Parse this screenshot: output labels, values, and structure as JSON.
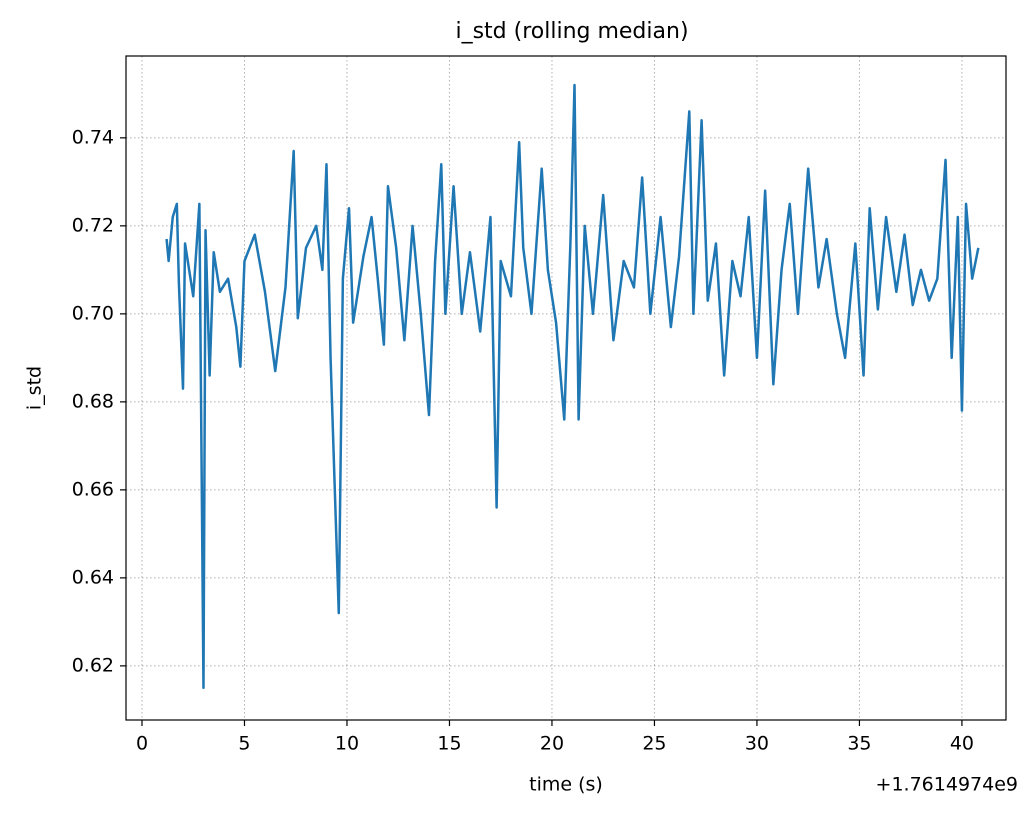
{
  "chart_data": {
    "type": "line",
    "title": "i_std (rolling median)",
    "x_label": "time (s)",
    "y_label": "i_std",
    "x_offset_label": "+1.7614974e9",
    "grid": true,
    "xlim": [
      -0.78,
      42.15
    ],
    "ylim": [
      0.6077,
      0.7586
    ],
    "xticks": [
      0,
      5,
      10,
      15,
      20,
      25,
      30,
      35,
      40
    ],
    "yticks": [
      0.62,
      0.64,
      0.66,
      0.68,
      {
        "value": 0.7,
        "label": "0.70"
      },
      0.72,
      0.74
    ],
    "x": [
      1.2,
      1.3,
      1.5,
      1.7,
      1.8,
      2.0,
      2.1,
      2.5,
      2.8,
      3.0,
      3.1,
      3.3,
      3.5,
      3.8,
      4.2,
      4.6,
      4.8,
      5.0,
      5.5,
      6.0,
      6.5,
      7.0,
      7.4,
      7.6,
      8.0,
      8.5,
      8.8,
      9.0,
      9.2,
      9.6,
      9.8,
      10.1,
      10.3,
      10.8,
      11.2,
      11.5,
      11.8,
      12.0,
      12.4,
      12.8,
      13.2,
      13.6,
      14.0,
      14.3,
      14.6,
      14.8,
      15.2,
      15.6,
      16.0,
      16.5,
      17.0,
      17.3,
      17.5,
      18.0,
      18.4,
      18.6,
      19.0,
      19.5,
      19.8,
      20.2,
      20.6,
      20.9,
      21.1,
      21.3,
      21.6,
      22.0,
      22.5,
      23.0,
      23.5,
      24.0,
      24.4,
      24.8,
      25.3,
      25.8,
      26.2,
      26.7,
      26.9,
      27.3,
      27.6,
      28.0,
      28.4,
      28.8,
      29.2,
      29.6,
      30.0,
      30.4,
      30.8,
      31.2,
      31.6,
      32.0,
      32.5,
      33.0,
      33.4,
      33.9,
      34.3,
      34.8,
      35.2,
      35.5,
      35.9,
      36.3,
      36.8,
      37.2,
      37.6,
      38.0,
      38.4,
      38.8,
      39.2,
      39.5,
      39.8,
      40.0,
      40.2,
      40.5,
      40.8
    ],
    "series": [
      {
        "name": "i_std",
        "color": "#1f77b4",
        "values": [
          0.717,
          0.712,
          0.722,
          0.725,
          0.707,
          0.683,
          0.716,
          0.704,
          0.725,
          0.615,
          0.719,
          0.686,
          0.714,
          0.705,
          0.708,
          0.697,
          0.688,
          0.712,
          0.718,
          0.705,
          0.687,
          0.706,
          0.737,
          0.699,
          0.715,
          0.72,
          0.71,
          0.734,
          0.69,
          0.632,
          0.708,
          0.724,
          0.698,
          0.713,
          0.722,
          0.708,
          0.693,
          0.729,
          0.715,
          0.694,
          0.72,
          0.7,
          0.677,
          0.712,
          0.734,
          0.7,
          0.729,
          0.7,
          0.714,
          0.696,
          0.722,
          0.656,
          0.712,
          0.704,
          0.739,
          0.715,
          0.7,
          0.733,
          0.71,
          0.698,
          0.676,
          0.716,
          0.752,
          0.676,
          0.72,
          0.7,
          0.727,
          0.694,
          0.712,
          0.706,
          0.731,
          0.7,
          0.722,
          0.697,
          0.713,
          0.746,
          0.7,
          0.744,
          0.703,
          0.716,
          0.686,
          0.712,
          0.704,
          0.722,
          0.69,
          0.728,
          0.684,
          0.71,
          0.725,
          0.7,
          0.733,
          0.706,
          0.717,
          0.7,
          0.69,
          0.716,
          0.686,
          0.724,
          0.701,
          0.722,
          0.705,
          0.718,
          0.702,
          0.71,
          0.703,
          0.708,
          0.735,
          0.69,
          0.722,
          0.678,
          0.725,
          0.708,
          0.715
        ]
      }
    ]
  }
}
